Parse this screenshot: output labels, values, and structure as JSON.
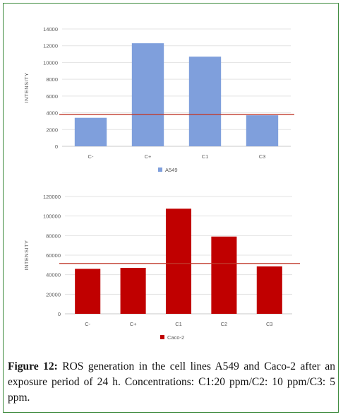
{
  "chart_data": [
    {
      "type": "bar",
      "categories": [
        "C-",
        "C+",
        "C1",
        "C3"
      ],
      "series": [
        {
          "name": "A549",
          "values": [
            3400,
            12300,
            10700,
            3700
          ],
          "color": "#7f9fdc"
        }
      ],
      "ylabel": "INTENSITY",
      "ylim": [
        0,
        14000
      ],
      "yticks": [
        0,
        2000,
        4000,
        6000,
        8000,
        10000,
        12000,
        14000
      ],
      "reference_line": {
        "value": 3800,
        "color": "#c0392b"
      },
      "grid": true,
      "legend": "bottom"
    },
    {
      "type": "bar",
      "categories": [
        "C-",
        "C+",
        "C1",
        "C2",
        "C3"
      ],
      "series": [
        {
          "name": "Caco-2",
          "values": [
            46000,
            47000,
            107500,
            79000,
            48500
          ],
          "color": "#c00000"
        }
      ],
      "ylabel": "INTENSITY",
      "ylim": [
        0,
        120000
      ],
      "yticks": [
        0,
        20000,
        40000,
        60000,
        80000,
        100000,
        120000
      ],
      "reference_line": {
        "value": 51500,
        "color": "#c0392b"
      },
      "grid": true,
      "legend": "bottom"
    }
  ],
  "caption": {
    "label": "Figure 12:",
    "text": "ROS generation in the cell lines A549 and Caco-2 after an exposure period of 24 h. Concentrations: C1:20 ppm/C2: 10 ppm/C3: 5 ppm."
  }
}
